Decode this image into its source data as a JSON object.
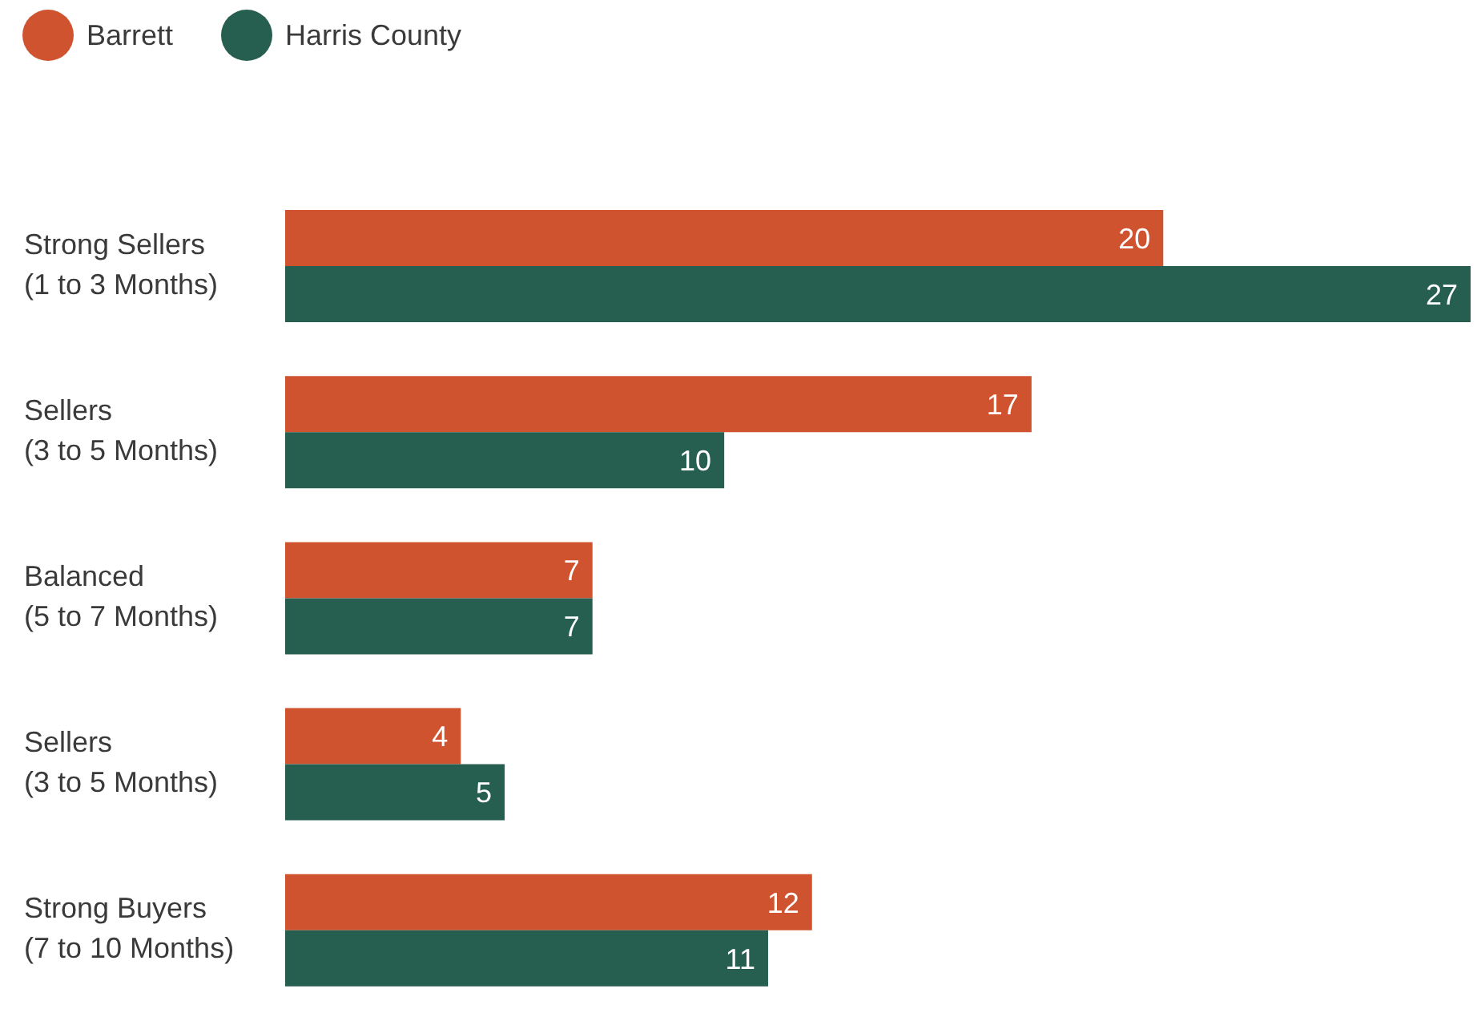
{
  "chart_data": {
    "type": "bar",
    "orientation": "horizontal",
    "categories": [
      "Strong Sellers\n(1 to 3 Months)",
      "Sellers\n(3 to 5 Months)",
      "Balanced\n(5 to 7 Months)",
      "Sellers\n(3 to 5 Months)",
      "Strong Buyers\n(7 to 10 Months)"
    ],
    "series": [
      {
        "name": "Barrett",
        "color": "#d0532f",
        "values": [
          20,
          17,
          7,
          4,
          12
        ]
      },
      {
        "name": "Harris County",
        "color": "#265e50",
        "values": [
          27,
          10,
          7,
          5,
          11
        ]
      }
    ],
    "data_labels": true,
    "legend": "top left",
    "tick_labels": "y",
    "grid": false
  }
}
